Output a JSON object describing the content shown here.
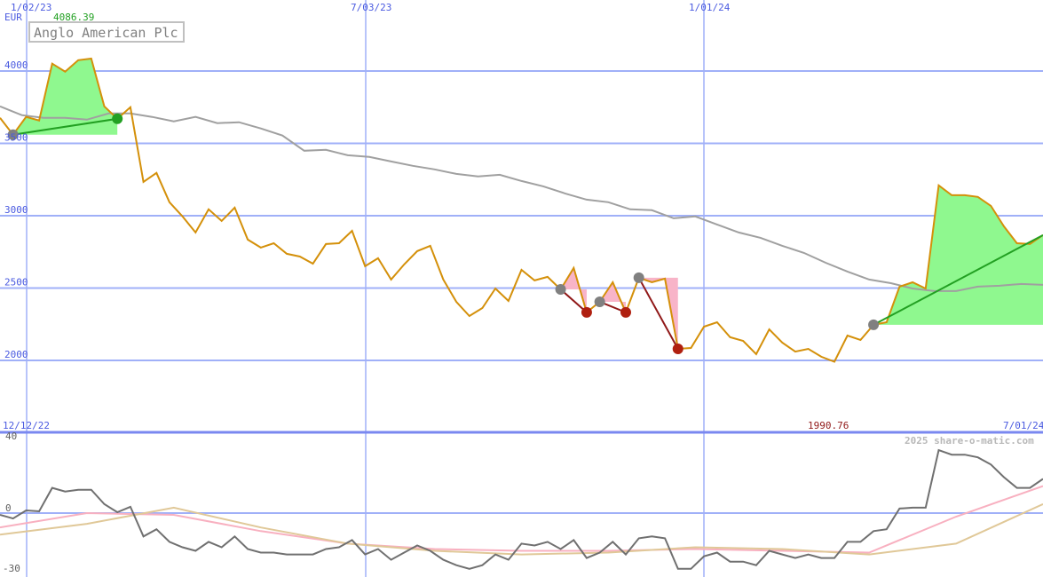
{
  "chart_data": [
    {
      "type": "line",
      "panel": "price",
      "title": "Anglo American Plc",
      "currency": "EUR",
      "max_label": "4086.39",
      "min_label": "1990.76",
      "x_ticks": [
        "12/12/22",
        "1/02/23",
        "7/03/23",
        "1/01/24",
        "7/01/24"
      ],
      "y_ticks": [
        2000,
        2500,
        3000,
        3500,
        4000
      ],
      "ylim": [
        1880,
        4300
      ],
      "grid": true,
      "series": [
        {
          "role": "price",
          "color": "#d4900a",
          "values": [
            3676,
            3560,
            3683,
            3658,
            4051,
            3996,
            4075,
            4086,
            3756,
            3670,
            3750,
            3234,
            3296,
            3093,
            2995,
            2884,
            3044,
            2964,
            3056,
            2835,
            2780,
            2810,
            2737,
            2718,
            2669,
            2804,
            2810,
            2896,
            2651,
            2706,
            2559,
            2663,
            2755,
            2792,
            2559,
            2405,
            2307,
            2362,
            2497,
            2411,
            2626,
            2553,
            2577,
            2491,
            2639,
            2332,
            2405,
            2540,
            2332,
            2571,
            2540,
            2565,
            2080,
            2086,
            2233,
            2264,
            2160,
            2135,
            2043,
            2215,
            2123,
            2061,
            2080,
            2025,
            1991,
            2172,
            2141,
            2246,
            2264,
            2510,
            2540,
            2497,
            3210,
            3142,
            3142,
            3130,
            3068,
            2927,
            2810,
            2804,
            2866
          ]
        },
        {
          "role": "moving-average",
          "color": "#a0a0a0",
          "values": [
            3756,
            3695,
            3676,
            3676,
            3664,
            3707,
            3707,
            3683,
            3652,
            3683,
            3640,
            3646,
            3603,
            3554,
            3449,
            3455,
            3418,
            3406,
            3375,
            3345,
            3320,
            3289,
            3271,
            3283,
            3240,
            3203,
            3154,
            3111,
            3093,
            3044,
            3038,
            2982,
            2995,
            2939,
            2884,
            2847,
            2792,
            2743,
            2675,
            2614,
            2559,
            2534,
            2497,
            2479,
            2479,
            2510,
            2516,
            2528,
            2522
          ]
        }
      ],
      "trades": [
        {
          "entry": 1,
          "exit": 9,
          "result": "gain"
        },
        {
          "entry": 43,
          "exit": 45,
          "result": "loss"
        },
        {
          "entry": 46,
          "exit": 48,
          "result": "loss"
        },
        {
          "entry": 49,
          "exit": 52,
          "result": "loss"
        },
        {
          "entry": 67,
          "exit": 80,
          "result": "open"
        }
      ],
      "colors": {
        "gain": "#8ff88f",
        "loss": "#f8b4c8",
        "gain_line": "#22a022",
        "loss_line": "#901818",
        "entry_marker": "#808080",
        "gain_marker": "#22a022",
        "loss_marker": "#b02010",
        "grid": "#a0b0f8",
        "axis_text": "#4a5ae0"
      }
    },
    {
      "type": "line",
      "panel": "oscillator",
      "y_ticks": [
        40,
        0,
        -30
      ],
      "ylim": [
        -32,
        44
      ],
      "series": [
        {
          "role": "momentum",
          "color": "#707070",
          "values": [
            -1,
            -3,
            1.5,
            1,
            14,
            12,
            13,
            13,
            5,
            0.5,
            3.5,
            -13,
            -9,
            -16,
            -19,
            -21,
            -16,
            -19,
            -13,
            -20,
            -22,
            -22,
            -23,
            -23,
            -23,
            -20,
            -19,
            -15,
            -23,
            -20,
            -26,
            -22,
            -18,
            -21,
            -26,
            -29,
            -31,
            -29,
            -23,
            -26,
            -17,
            -18,
            -16,
            -20,
            -15,
            -25,
            -22,
            -16,
            -23,
            -14,
            -13,
            -14,
            -31,
            -31,
            -24,
            -22,
            -27,
            -27,
            -29,
            -21,
            -23,
            -25,
            -23,
            -25,
            -25,
            -16,
            -16,
            -10,
            -9,
            2.5,
            3,
            3,
            35,
            32.5,
            32.5,
            31,
            27,
            20,
            14,
            14,
            19
          ]
        },
        {
          "role": "signal-fast",
          "color": "#f8b0c0",
          "values": [
            -8,
            0,
            -1,
            -10,
            -17,
            -20,
            -21,
            -21,
            -20,
            -21,
            -22,
            -2,
            15
          ]
        },
        {
          "role": "signal-slow",
          "color": "#e0c898",
          "values": [
            -12,
            -6,
            3,
            -8,
            -17,
            -21,
            -23,
            -22,
            -19,
            -20,
            -23,
            -17,
            5
          ]
        }
      ]
    }
  ],
  "watermark": "2025 share-o-matic.com"
}
